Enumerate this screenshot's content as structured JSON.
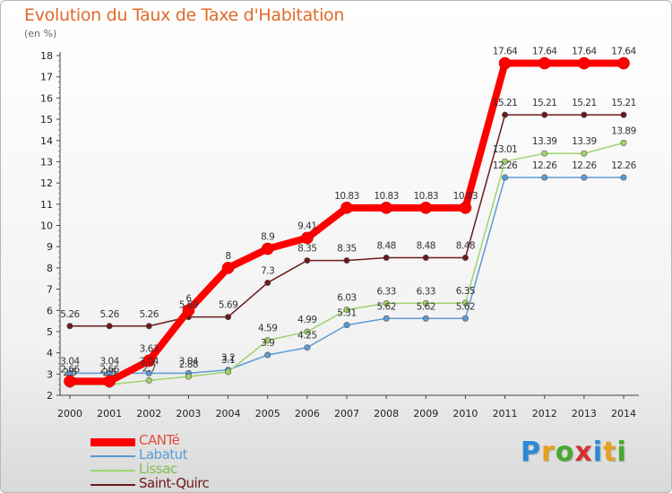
{
  "header": {
    "title": "Evolution du Taux de Taxe d'Habitation",
    "unit": "(en %)"
  },
  "logo": {
    "letters": [
      "P",
      "r",
      "o",
      "x",
      "i",
      "t",
      "i"
    ],
    "colors": [
      "#2a8ad6",
      "#e8a020",
      "#4aa830",
      "#d83030",
      "#2a8ad6",
      "#e8a020",
      "#4aa830"
    ]
  },
  "chart_data": {
    "type": "line",
    "title": "Evolution du Taux de Taxe d'Habitation",
    "ylabel": "(en %)",
    "xlabel": "",
    "x": [
      "2000",
      "2001",
      "2002",
      "2003",
      "2004",
      "2005",
      "2006",
      "2007",
      "2008",
      "2009",
      "2010",
      "2011",
      "2012",
      "2013",
      "2014"
    ],
    "ylim": [
      2,
      18
    ],
    "yticks": [
      2,
      3,
      4,
      5,
      6,
      7,
      8,
      9,
      10,
      11,
      12,
      13,
      14,
      15,
      16,
      17,
      18
    ],
    "grid": false,
    "legend": "bottom-left",
    "series": [
      {
        "name": "Saint-Quirc",
        "color": "#6b1a1a",
        "width": 1.5,
        "values": [
          5.26,
          5.26,
          5.26,
          5.69,
          5.69,
          7.3,
          8.35,
          8.35,
          8.48,
          8.48,
          8.48,
          15.21,
          15.21,
          15.21,
          15.21
        ],
        "labels": [
          "5.26",
          "5.26",
          "5.26",
          "5.69",
          "5.69",
          "7.3",
          "8.35",
          "8.35",
          "8.48",
          "8.48",
          "8.48",
          "15.21",
          "15.21",
          "15.21",
          "15.21"
        ]
      },
      {
        "name": "Labatut",
        "color": "#5b9bd5",
        "width": 1.5,
        "values": [
          3.04,
          3.04,
          3.04,
          3.04,
          3.2,
          3.9,
          4.25,
          5.31,
          5.62,
          5.62,
          5.62,
          12.26,
          12.26,
          12.26,
          12.26
        ],
        "labels": [
          "3.04",
          "3.04",
          "3.04",
          "3.04",
          "3.2",
          "3.9",
          "4.25",
          "5.31",
          "5.62",
          "5.62",
          "5.62",
          "12.26",
          "12.26",
          "12.26",
          "12.26"
        ]
      },
      {
        "name": "Lissac",
        "color": "#9ed36a",
        "width": 1.5,
        "values": [
          2.5,
          2.5,
          2.7,
          2.88,
          3.1,
          4.59,
          4.99,
          6.03,
          6.33,
          6.33,
          6.35,
          13.01,
          13.39,
          13.39,
          13.89
        ],
        "labels": [
          "2.5",
          "2.5",
          "2.7",
          "2.88",
          "3.1",
          "4.59",
          "4.99",
          "6.03",
          "6.33",
          "6.33",
          "6.35",
          "13.01",
          "13.39",
          "13.39",
          "13.89"
        ]
      },
      {
        "name": "CANTé",
        "color": "#ff0000",
        "width": 8,
        "values": [
          2.66,
          2.66,
          3.63,
          6,
          8,
          8.9,
          9.41,
          10.83,
          10.83,
          10.83,
          10.83,
          17.64,
          17.64,
          17.64,
          17.64
        ],
        "labels": [
          "2.66",
          "2.66",
          "3.63",
          "6",
          "8",
          "8.9",
          "9.41",
          "10.83",
          "10.83",
          "10.83",
          "10.83",
          "17.64",
          "17.64",
          "17.64",
          "17.64"
        ]
      }
    ],
    "legend_order": [
      "CANTé",
      "Labatut",
      "Lissac",
      "Saint-Quirc"
    ]
  }
}
